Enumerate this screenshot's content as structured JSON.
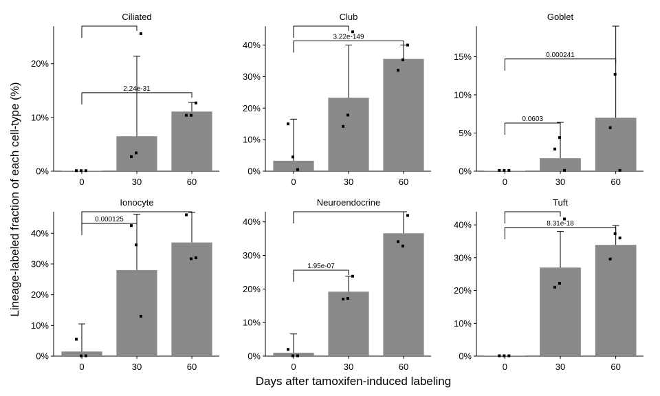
{
  "chart_data": {
    "type": "bar",
    "xlabel": "Days after tamoxifen-induced labeling",
    "ylabel": "Lineage-labeled fraction of each cell-type (%)",
    "categories": [
      "0",
      "30",
      "60"
    ],
    "panels": [
      {
        "title": "Ciliated",
        "ylim": [
          0,
          27
        ],
        "yticks": [
          0,
          10,
          20
        ],
        "tick_labels": [
          "0%",
          "10%",
          "20%"
        ],
        "values": [
          0.05,
          6.5,
          11.1
        ],
        "err_upper": [
          0.05,
          21.4,
          12.8
        ],
        "points": [
          [
            0.1,
            0.1,
            0.1
          ],
          [
            2.7,
            3.4,
            25.6
          ],
          [
            10.4,
            10.4,
            12.7
          ]
        ],
        "comparisons": [
          {
            "from": 0,
            "to": 2,
            "label": "2.24e-31",
            "y": 14.6
          },
          {
            "from": 0,
            "to": 1,
            "label": "",
            "y": 27.0
          }
        ]
      },
      {
        "title": "Club",
        "ylim": [
          0,
          46
        ],
        "yticks": [
          0,
          10,
          20,
          30,
          40
        ],
        "tick_labels": [
          "0%",
          "10%",
          "20%",
          "30%",
          "40%"
        ],
        "values": [
          3.3,
          23.3,
          35.6
        ],
        "err_upper": [
          16.5,
          40.0,
          40.0
        ],
        "points": [
          [
            15.0,
            4.5,
            0.5
          ],
          [
            14.2,
            17.8,
            44.2
          ],
          [
            32.0,
            35.3,
            40.0
          ]
        ],
        "comparisons": [
          {
            "from": 0,
            "to": 2,
            "label": "3.22e-149",
            "y": 41.3
          },
          {
            "from": 0,
            "to": 1,
            "label": "",
            "y": 46.0
          }
        ]
      },
      {
        "title": "Goblet",
        "ylim": [
          0,
          19
        ],
        "yticks": [
          0,
          5,
          10,
          15
        ],
        "tick_labels": [
          "0%",
          "5%",
          "10%",
          "15%"
        ],
        "values": [
          0.05,
          1.7,
          7.0
        ],
        "err_upper": [
          0.05,
          6.4,
          19.0
        ],
        "points": [
          [
            0.1,
            0.1,
            0.1
          ],
          [
            2.9,
            4.4,
            0.1
          ],
          [
            5.7,
            12.7,
            0.1
          ]
        ],
        "comparisons": [
          {
            "from": 0,
            "to": 2,
            "label": "0.000241",
            "y": 14.7
          },
          {
            "from": 0,
            "to": 1,
            "label": "0.0603",
            "y": 6.3
          }
        ]
      },
      {
        "title": "Ionocyte",
        "ylim": [
          0,
          47
        ],
        "yticks": [
          0,
          10,
          20,
          30,
          40
        ],
        "tick_labels": [
          "0%",
          "10%",
          "20%",
          "30%",
          "40%"
        ],
        "values": [
          1.5,
          28.0,
          37.0
        ],
        "err_upper": [
          10.5,
          46.2,
          46.8
        ],
        "points": [
          [
            5.5,
            0.1,
            0.1
          ],
          [
            42.5,
            36.2,
            13.0
          ],
          [
            46.0,
            31.7,
            32.0
          ]
        ],
        "comparisons": [
          {
            "from": 0,
            "to": 1,
            "label": "0.000125",
            "y": 43.2
          },
          {
            "from": 0,
            "to": 2,
            "label": "",
            "y": 47.0
          }
        ]
      },
      {
        "title": "Neuroendocrine",
        "ylim": [
          0,
          43
        ],
        "yticks": [
          0,
          10,
          20,
          30,
          40
        ],
        "tick_labels": [
          "0%",
          "10%",
          "20%",
          "30%",
          "40%"
        ],
        "values": [
          1.0,
          19.2,
          36.6
        ],
        "err_upper": [
          6.6,
          23.8,
          43.0
        ],
        "points": [
          [
            2.0,
            0.1,
            0.1
          ],
          [
            17.0,
            17.2,
            23.8
          ],
          [
            34.1,
            32.8,
            41.9
          ]
        ],
        "comparisons": [
          {
            "from": 0,
            "to": 1,
            "label": "1.95e-07",
            "y": 25.6
          },
          {
            "from": 0,
            "to": 2,
            "label": "",
            "y": 43.0
          }
        ]
      },
      {
        "title": "Tuft",
        "ylim": [
          0,
          44
        ],
        "yticks": [
          0,
          10,
          20,
          30,
          40
        ],
        "tick_labels": [
          "0%",
          "10%",
          "20%",
          "30%",
          "40%"
        ],
        "values": [
          0.05,
          27.0,
          33.9
        ],
        "err_upper": [
          0.05,
          38.0,
          39.8
        ],
        "points": [
          [
            0.1,
            0.1,
            0.1
          ],
          [
            21.0,
            22.2,
            41.8
          ],
          [
            29.6,
            37.3,
            36.0
          ]
        ],
        "comparisons": [
          {
            "from": 0,
            "to": 2,
            "label": "8.31e-18",
            "y": 39.2
          },
          {
            "from": 0,
            "to": 1,
            "label": "",
            "y": 44.0
          }
        ]
      }
    ]
  }
}
